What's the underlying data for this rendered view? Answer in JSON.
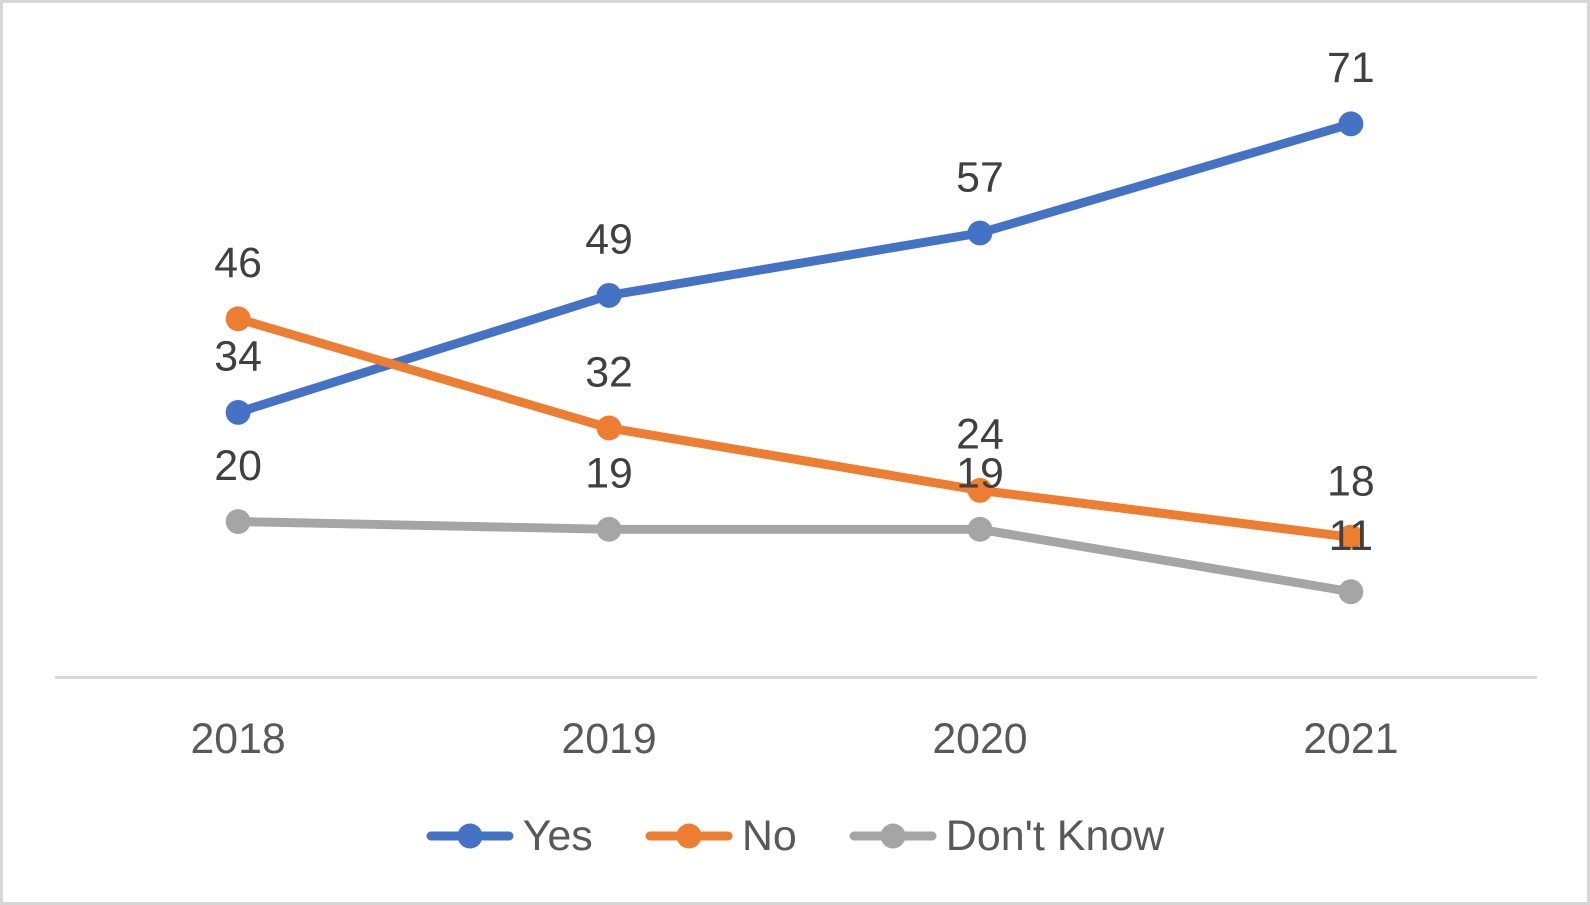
{
  "chart_data": {
    "type": "line",
    "title": "",
    "xlabel": "",
    "ylabel": "",
    "categories": [
      "2018",
      "2019",
      "2020",
      "2021"
    ],
    "series": [
      {
        "name": "Yes",
        "color": "#4472C4",
        "values": [
          34,
          49,
          57,
          71
        ]
      },
      {
        "name": "No",
        "color": "#ED7D31",
        "values": [
          46,
          32,
          24,
          18
        ]
      },
      {
        "name": "Don't Know",
        "color": "#A5A5A5",
        "values": [
          20,
          19,
          19,
          11
        ]
      }
    ],
    "data_labels_shown": true,
    "ylim": [
      0,
      80
    ],
    "grid": false,
    "y_axis_shown": false,
    "legend_position": "bottom",
    "colors": {
      "axis_line": "#D9D9D9",
      "data_label_text": "#404040",
      "tick_label_text": "#595959",
      "legend_text": "#595959",
      "card_border": "#D6D6D6",
      "background": "#FFFFFF"
    }
  }
}
